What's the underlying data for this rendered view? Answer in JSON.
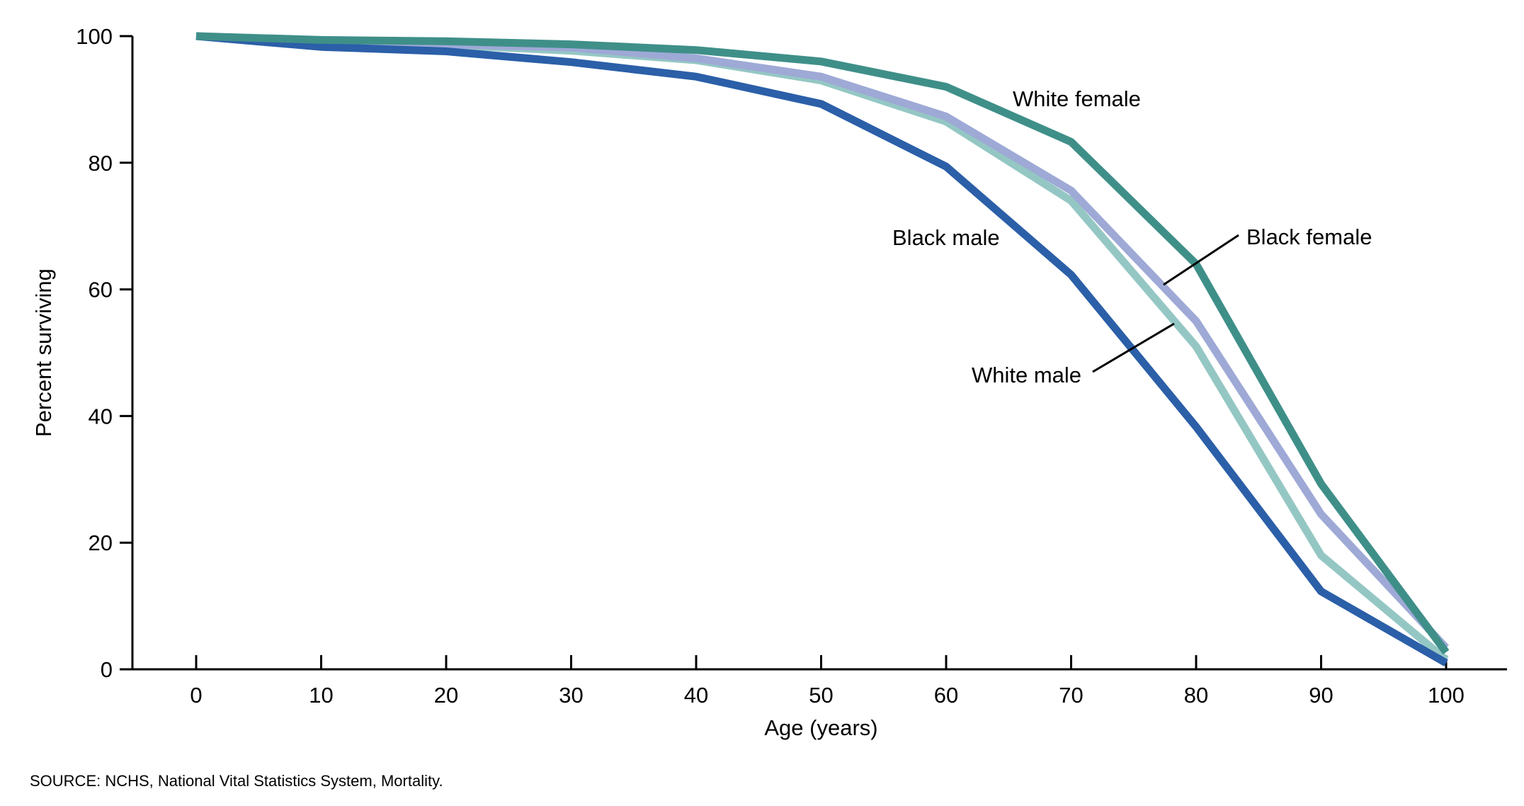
{
  "chart_data": {
    "type": "line",
    "xlabel": "Age (years)",
    "ylabel": "Percent surviving",
    "x": [
      0,
      10,
      20,
      30,
      40,
      50,
      60,
      70,
      80,
      90,
      100
    ],
    "xlim": [
      -5,
      105
    ],
    "ylim": [
      0,
      100
    ],
    "xticks": [
      0,
      10,
      20,
      30,
      40,
      50,
      60,
      70,
      80,
      90,
      100
    ],
    "yticks": [
      0,
      20,
      40,
      60,
      80,
      100
    ],
    "grid": false,
    "legend": "direct labels on lines",
    "series": [
      {
        "name": "White male",
        "color": "#94c7c4",
        "values": [
          100,
          98.9,
          98.6,
          97.7,
          96.2,
          93.0,
          86.5,
          74.0,
          51.0,
          18.0,
          1.5
        ]
      },
      {
        "name": "Black female",
        "color": "#9ea9d6",
        "values": [
          100,
          99.1,
          98.7,
          98.2,
          96.5,
          93.6,
          87.3,
          75.6,
          55.0,
          24.5,
          3.4
        ]
      },
      {
        "name": "Black male",
        "color": "#2b5fa8",
        "values": [
          100,
          98.3,
          97.6,
          95.9,
          93.6,
          89.3,
          79.4,
          62.3,
          38.3,
          12.3,
          1.0
        ]
      },
      {
        "name": "White female",
        "color": "#3f8f89",
        "values": [
          100,
          99.4,
          99.2,
          98.7,
          97.8,
          96.0,
          92.0,
          83.3,
          64.0,
          29.3,
          2.7
        ]
      }
    ]
  },
  "source": "SOURCE: NCHS, National Vital Statistics System, Mortality."
}
